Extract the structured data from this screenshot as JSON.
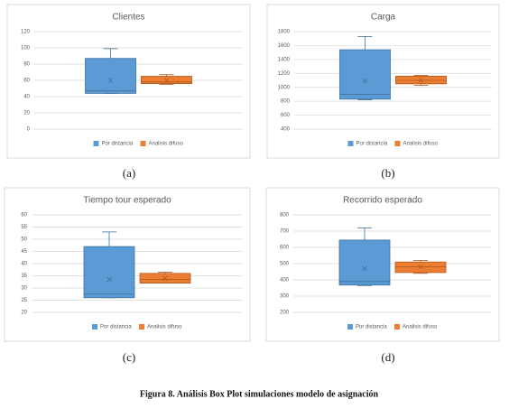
{
  "chart_data": [
    {
      "type": "box",
      "label": "(a)",
      "title": "Clientes",
      "ylim": [
        0,
        120
      ],
      "yticks": [
        0,
        20,
        40,
        60,
        80,
        100,
        120
      ],
      "grid": true,
      "legend": "bottom",
      "series": [
        {
          "name": "Por distancia",
          "color": "#5b9bd5",
          "min": 44,
          "q1": 44,
          "median": 47,
          "q3": 87,
          "max": 99,
          "mean": 60
        },
        {
          "name": "Analisis difuso",
          "color": "#ed7d31",
          "min": 55,
          "q1": 56,
          "median": 58,
          "q3": 65,
          "max": 67,
          "mean": 60
        }
      ]
    },
    {
      "type": "box",
      "label": "(b)",
      "title": "Carga",
      "ylim": [
        400,
        1800
      ],
      "yticks": [
        400,
        600,
        800,
        1000,
        1200,
        1400,
        1600,
        1800
      ],
      "grid": true,
      "legend": "bottom",
      "series": [
        {
          "name": "Por distancia",
          "color": "#5b9bd5",
          "min": 820,
          "q1": 830,
          "median": 900,
          "q3": 1540,
          "max": 1730,
          "mean": 1090
        },
        {
          "name": "Analisis difuso",
          "color": "#ed7d31",
          "min": 1030,
          "q1": 1050,
          "median": 1100,
          "q3": 1160,
          "max": 1170,
          "mean": 1100
        }
      ]
    },
    {
      "type": "box",
      "label": "(c)",
      "title": "Tiempo tour esperado",
      "ylim": [
        20,
        60
      ],
      "yticks": [
        20,
        25,
        30,
        35,
        40,
        45,
        50,
        55,
        60
      ],
      "grid": true,
      "legend": "bottom",
      "series": [
        {
          "name": "Por distancia",
          "color": "#5b9bd5",
          "min": 26,
          "q1": 26,
          "median": 27.5,
          "q3": 47,
          "max": 53,
          "mean": 33.5
        },
        {
          "name": "Analisis difuso",
          "color": "#ed7d31",
          "min": 32,
          "q1": 32,
          "median": 33.5,
          "q3": 36,
          "max": 36.5,
          "mean": 34
        }
      ]
    },
    {
      "type": "box",
      "label": "(d)",
      "title": "Recorrido esperado",
      "ylim": [
        200,
        800
      ],
      "yticks": [
        200,
        300,
        400,
        500,
        600,
        700,
        800
      ],
      "grid": true,
      "legend": "bottom",
      "series": [
        {
          "name": "Por distancia",
          "color": "#5b9bd5",
          "min": 365,
          "q1": 368,
          "median": 390,
          "q3": 645,
          "max": 720,
          "mean": 470
        },
        {
          "name": "Analisis difuso",
          "color": "#ed7d31",
          "min": 440,
          "q1": 445,
          "median": 480,
          "q3": 510,
          "max": 520,
          "mean": 480
        }
      ]
    }
  ],
  "caption": "Figura 8. Análisis Box Plot simulaciones modelo de asignación"
}
